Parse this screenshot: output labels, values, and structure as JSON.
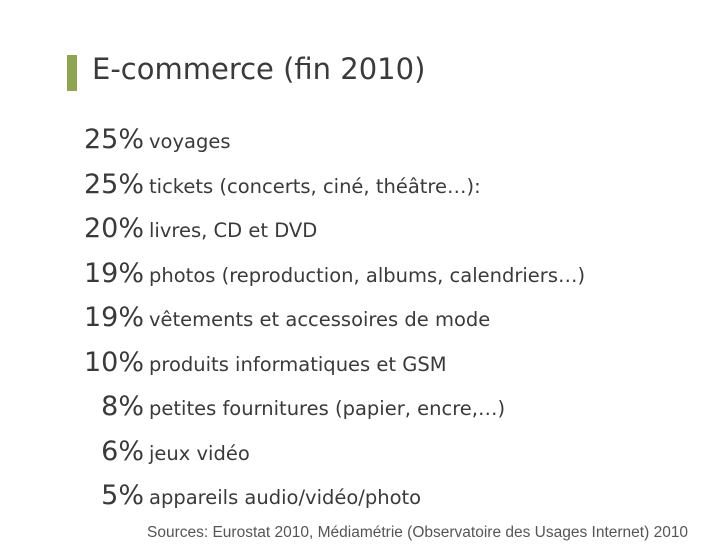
{
  "title": "E-commerce (fin 2010)",
  "items": [
    {
      "pct": "25%",
      "label": "voyages"
    },
    {
      "pct": "25%",
      "label": "tickets (concerts, ciné, théâtre…):"
    },
    {
      "pct": "20%",
      "label": "livres, CD et DVD"
    },
    {
      "pct": "19%",
      "label": "photos (reproduction, albums, calendriers…)"
    },
    {
      "pct": "19%",
      "label": "vêtements et accessoires de mode"
    },
    {
      "pct": "10%",
      "label": "produits informatiques et  GSM"
    },
    {
      "pct": "8%",
      "label": "petites fournitures (papier, encre,…)"
    },
    {
      "pct": "6%",
      "label": "jeux vidéo"
    },
    {
      "pct": "5%",
      "label": "appareils audio/vidéo/photo"
    }
  ],
  "source": "Sources: Eurostat 2010, Médiamétrie (Observatoire des Usages Internet) 2010"
}
